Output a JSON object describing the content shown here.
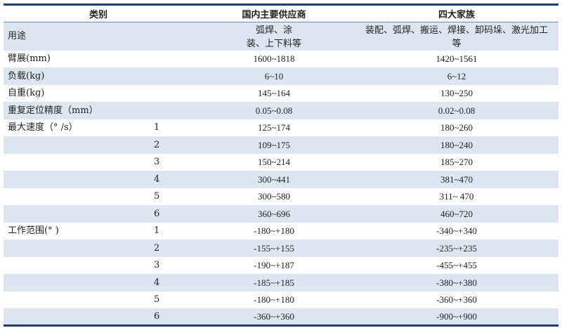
{
  "header": {
    "category": "类别",
    "domestic": "国内主要供应商",
    "big_four": "四大家族"
  },
  "rows": [
    {
      "label": "用途",
      "sub": "",
      "domestic": "弧焊、涂\n装、上下料等",
      "big_four": "装配、弧焊、搬运、焊接、卸码垛、激光加工等"
    },
    {
      "label": "臂展(mm)",
      "sub": "",
      "domestic": "1600~1818",
      "big_four": "1420~1561"
    },
    {
      "label": "负载(kg)",
      "sub": "",
      "domestic": "6~10",
      "big_four": "6~12"
    },
    {
      "label": "自重(kg)",
      "sub": "",
      "domestic": "145~164",
      "big_four": "130~250"
    },
    {
      "label": "重复定位精度（mm）",
      "sub": "",
      "domestic": "0.05~0.08",
      "big_four": "0.02~0.08"
    },
    {
      "label": "最大速度（° /s）",
      "sub": "1",
      "domestic": "125~174",
      "big_four": "180~260"
    },
    {
      "label": "",
      "sub": "2",
      "domestic": "109~175",
      "big_four": "180~240"
    },
    {
      "label": "",
      "sub": "3",
      "domestic": "150~214",
      "big_four": "185~270"
    },
    {
      "label": "",
      "sub": "4",
      "domestic": "300~441",
      "big_four": "381~470"
    },
    {
      "label": "",
      "sub": "5",
      "domestic": "300~580",
      "big_four": "311~ 470"
    },
    {
      "label": "",
      "sub": "6",
      "domestic": "360~696",
      "big_four": "460~720"
    },
    {
      "label": "工作范围(° )",
      "sub": "1",
      "domestic": "-180~+180",
      "big_four": "-340~+340"
    },
    {
      "label": "",
      "sub": "2",
      "domestic": "-155~+155",
      "big_four": "-235~+235"
    },
    {
      "label": "",
      "sub": "3",
      "domestic": "-190~+187",
      "big_four": "-455~+455"
    },
    {
      "label": "",
      "sub": "4",
      "domestic": "-185~+185",
      "big_four": "-380~+380"
    },
    {
      "label": "",
      "sub": "5",
      "domestic": "-180~+180",
      "big_four": "-360~+360"
    },
    {
      "label": "",
      "sub": "6",
      "domestic": "-360~+360",
      "big_four": "-900~+900"
    }
  ],
  "colors": {
    "band": "#dce6f1",
    "rule": "#1f3d6b"
  }
}
